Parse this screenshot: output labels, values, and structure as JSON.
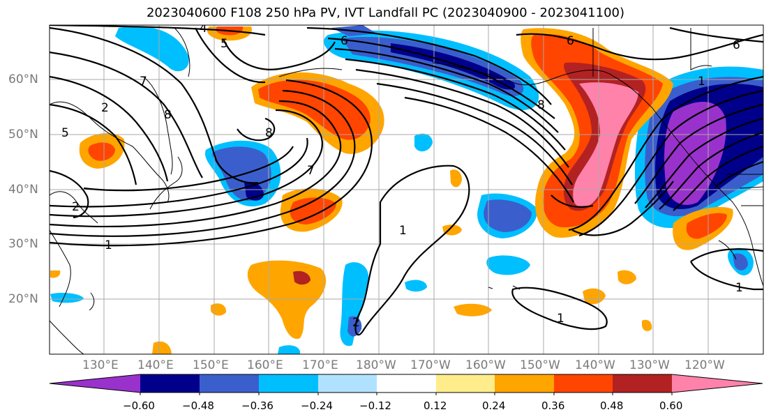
{
  "title": "2023040600 F108 250 hPa PV, IVT Landfall PC (2023040900 - 2023041100)",
  "latitude_labels": [
    "60°N",
    "50°N",
    "40°N",
    "30°N",
    "20°N"
  ],
  "longitude_labels": [
    "130°E",
    "140°E",
    "150°E",
    "160°E",
    "170°E",
    "180°W",
    "170°W",
    "160°W",
    "150°W",
    "140°W",
    "130°W",
    "120°W"
  ],
  "colorbar": {
    "tick_labels": [
      "−0.60",
      "−0.48",
      "−0.36",
      "−0.24",
      "−0.12",
      "0.12",
      "0.24",
      "0.36",
      "0.48",
      "0.60"
    ],
    "colors": [
      "#9932cc",
      "#00008b",
      "#3a5fcd",
      "#00bfff",
      "#b0e2ff",
      "#ffffff",
      "#ffec8b",
      "#ffa500",
      "#ff4500",
      "#b22222",
      "#ff82ab"
    ]
  },
  "pv_contour_labels": [
    "1",
    "1",
    "1",
    "1",
    "1",
    "2",
    "2",
    "2",
    "4",
    "5",
    "5",
    "6",
    "6",
    "6",
    "7",
    "7",
    "8",
    "8",
    "8"
  ]
}
